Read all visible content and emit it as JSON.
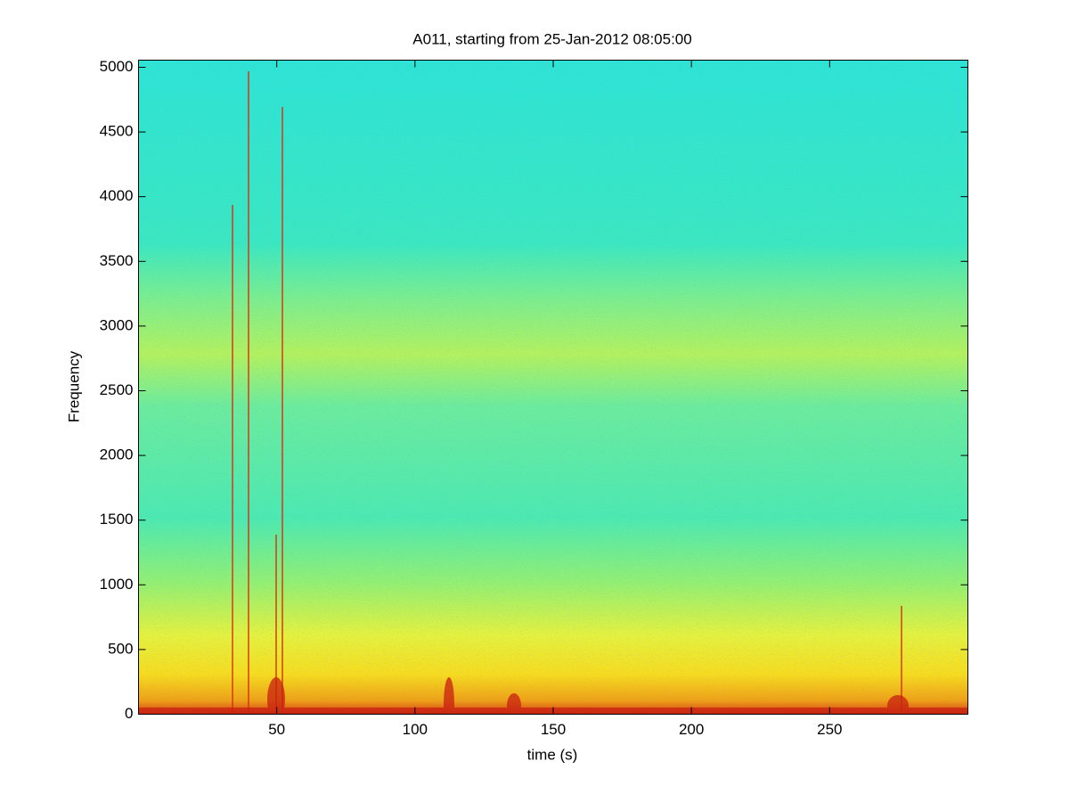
{
  "chart_data": {
    "type": "spectrogram",
    "title": "A011, starting from 25-Jan-2012 08:05:00",
    "x_label": "time (s)",
    "y_label": "Frequency",
    "xlim": [
      0,
      300
    ],
    "xticks": [
      50,
      100,
      150,
      200,
      250
    ],
    "ylim": [
      0,
      5055
    ],
    "yticks": [
      0,
      500,
      1000,
      1500,
      2000,
      2500,
      3000,
      3500,
      4000,
      4500,
      5000
    ]
  }
}
